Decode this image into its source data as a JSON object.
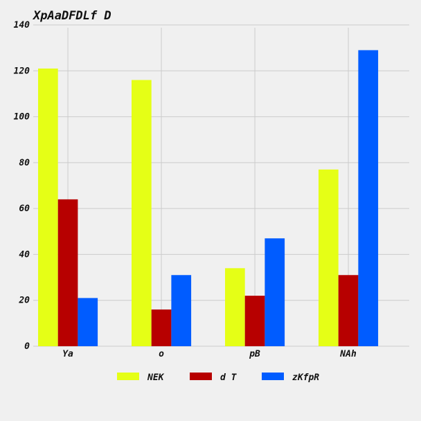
{
  "chart_data": {
    "type": "bar",
    "title": "XpAaDFDLf D",
    "xlabel": "",
    "ylabel": "",
    "categories": [
      "Ya",
      "o",
      "pB",
      "NAh"
    ],
    "series": [
      {
        "name": "NEK",
        "values": [
          121,
          116,
          34,
          77
        ],
        "color": "#e5ff16"
      },
      {
        "name": "d T",
        "values": [
          64,
          16,
          22,
          31
        ],
        "color": "#b70000"
      },
      {
        "name": "zKfpR",
        "values": [
          21,
          31,
          47,
          129
        ],
        "color": "#005cff"
      }
    ],
    "ylim": [
      0,
      140
    ],
    "yticks": [
      0,
      20,
      40,
      60,
      80,
      100,
      120,
      140
    ],
    "grid": true,
    "legend_position": "bottom"
  }
}
